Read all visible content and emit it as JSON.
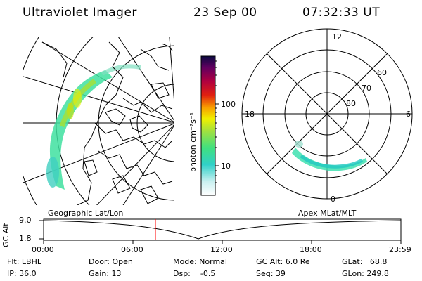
{
  "header": {
    "title": "Ultraviolet Imager",
    "date": "23 Sep 00",
    "time": "07:32:33 UT"
  },
  "colorbar": {
    "unit_label": "photon cm⁻²s⁻¹",
    "ticks": [
      "100",
      "10"
    ]
  },
  "polar_plot": {
    "hour_labels": [
      "12",
      "18",
      "6",
      "0"
    ],
    "lat_labels": [
      "60",
      "70",
      "80"
    ]
  },
  "panel_labels": {
    "left": "Geographic Lat/Lon",
    "right": "Apex MLat/MLT"
  },
  "timeline": {
    "axis_title": "GC Alt",
    "y_ticks": [
      "9.0",
      "1.8"
    ],
    "x_ticks": [
      "00:00",
      "06:00",
      "12:00",
      "18:00",
      "23:59"
    ],
    "current_marker_time": "07:32",
    "marker_color": "#ff0000"
  },
  "info": {
    "flt": "Flt: LBHL",
    "ip": "IP: 36.0",
    "door": "Door: Open",
    "gain": "Gain: 13",
    "mode": "Mode: Normal",
    "dsp": "Dsp:    -0.5",
    "gcalt": "GC Alt: 6.0 Re",
    "seq": "Seq: 39",
    "glat": "GLat:   68.8",
    "glon": "GLon: 249.8"
  }
}
